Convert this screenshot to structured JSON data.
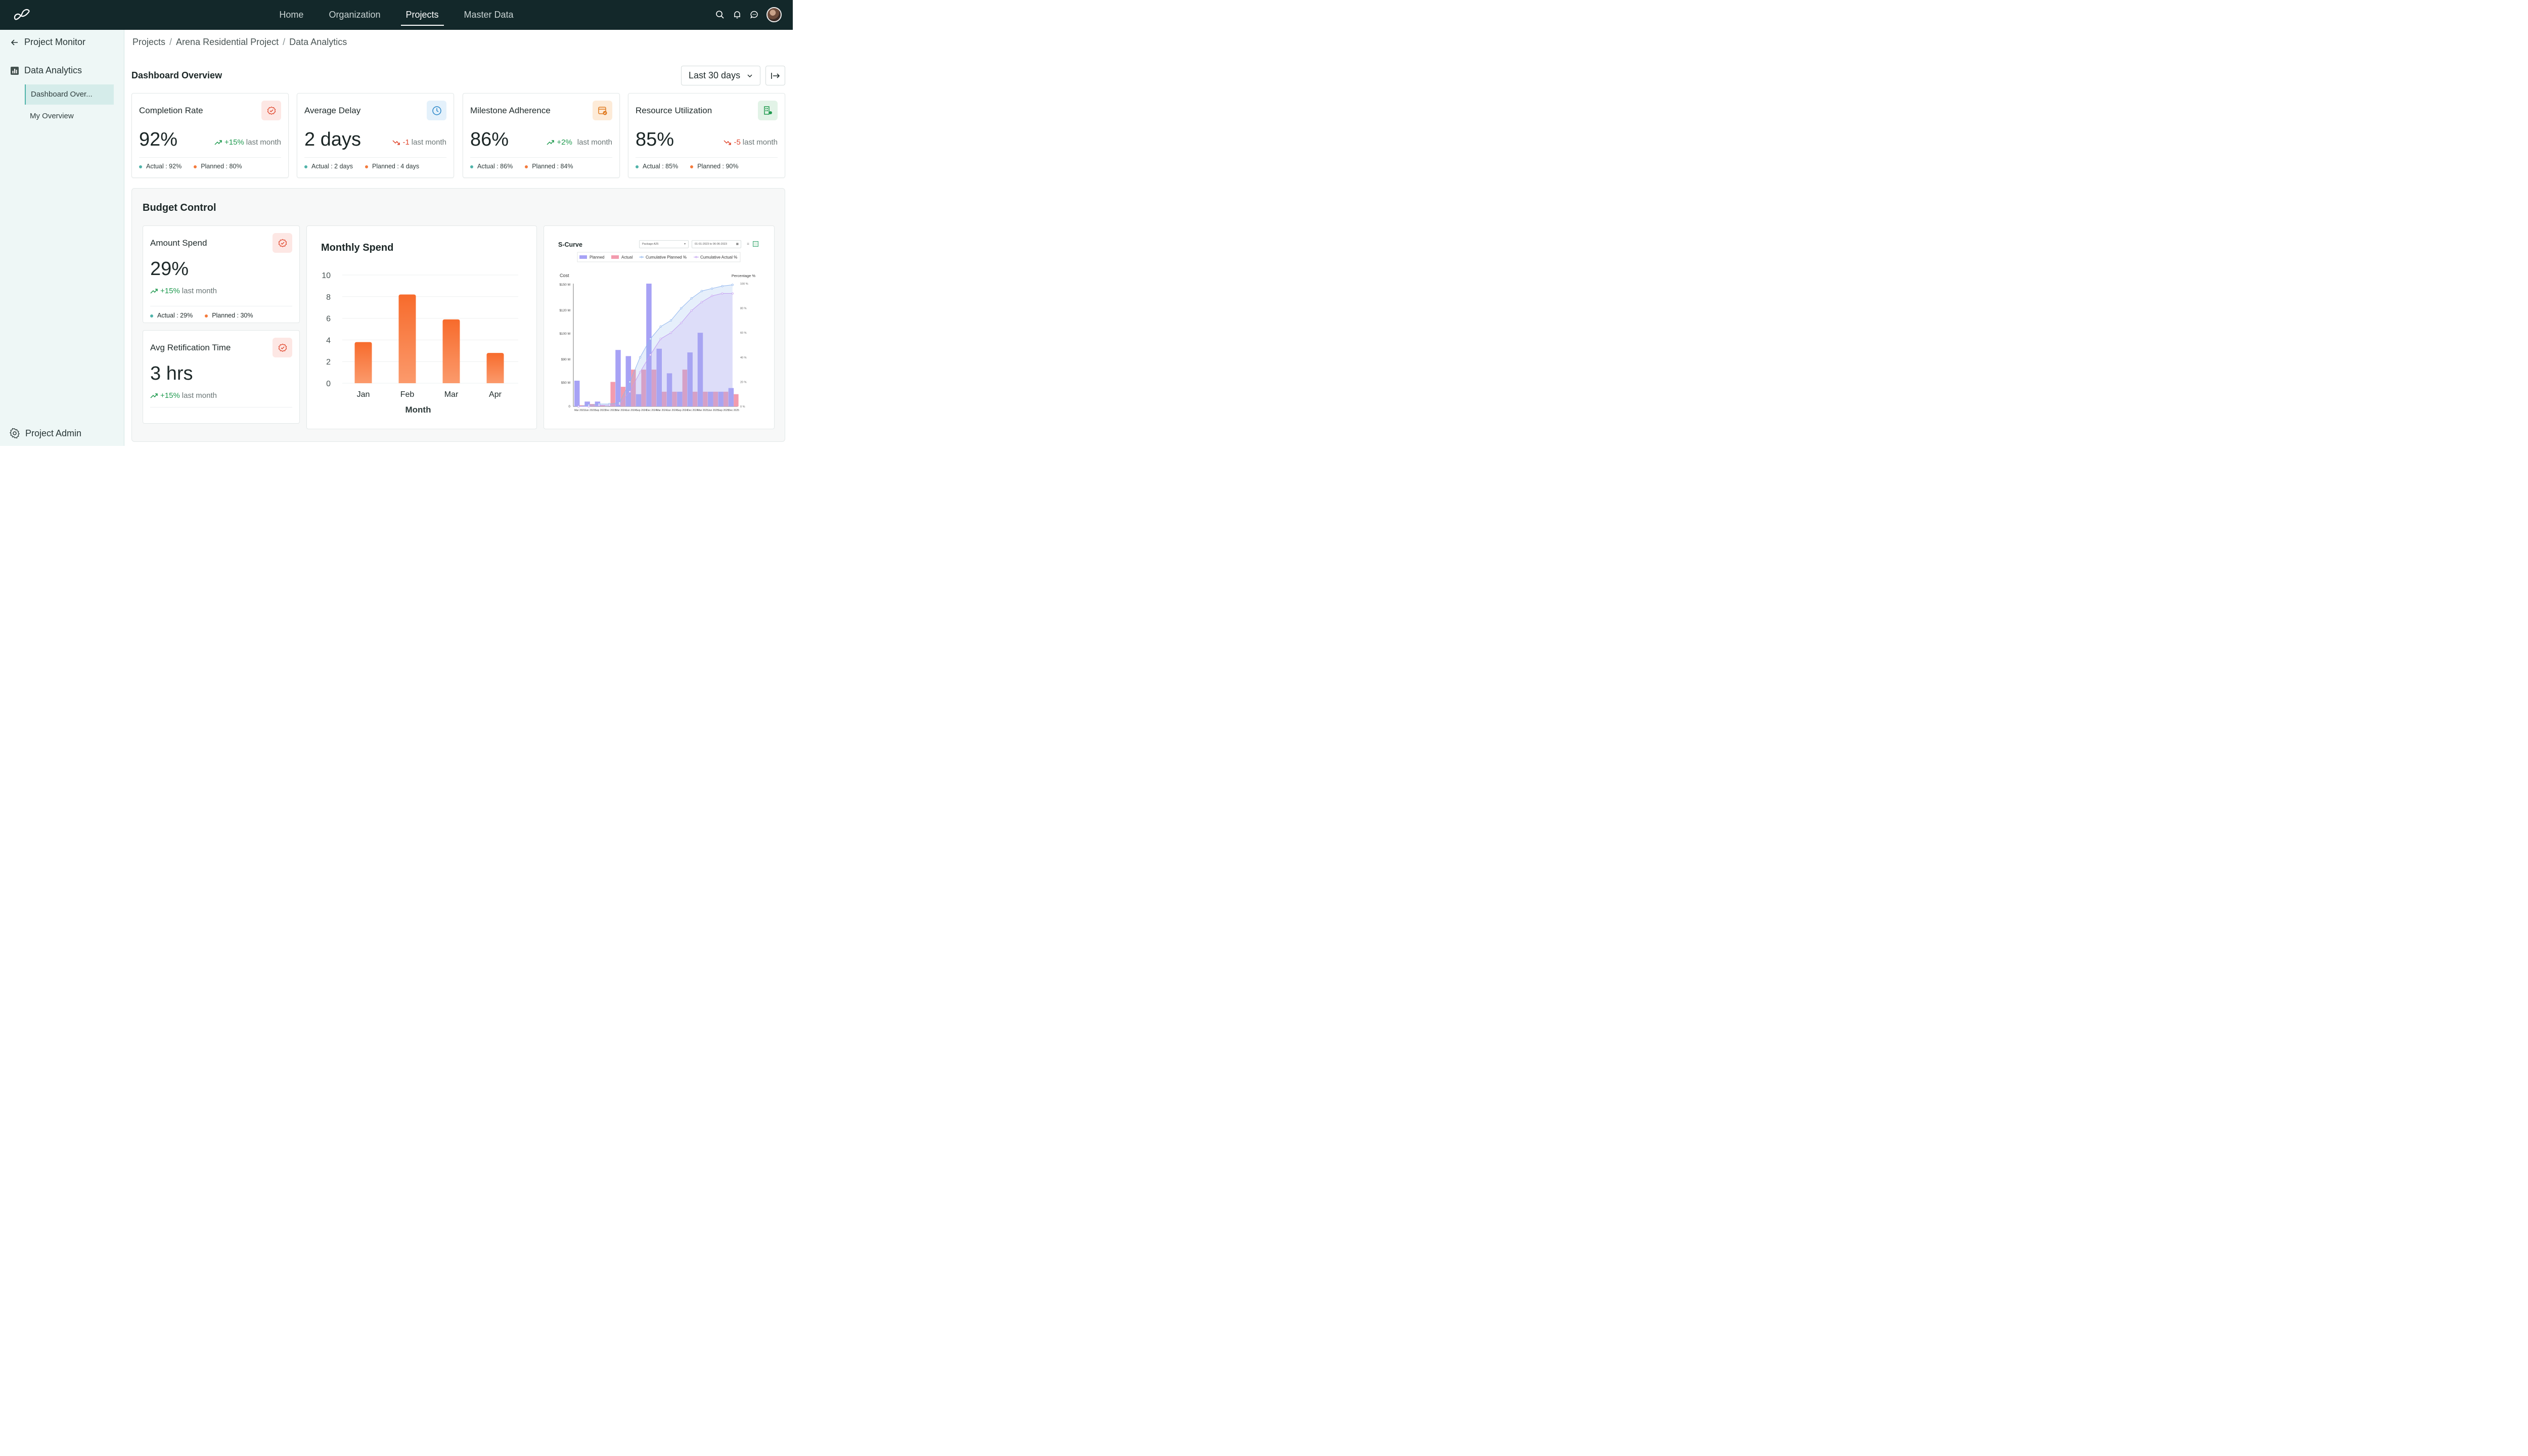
{
  "nav": {
    "items": [
      "Home",
      "Organization",
      "Projects",
      "Master Data"
    ],
    "active": "Projects"
  },
  "sidebar": {
    "back_label": "Project Monitor",
    "section_label": "Data Analytics",
    "items": [
      "Dashboard Over...",
      "My Overview"
    ],
    "admin_label": "Project Admin"
  },
  "breadcrumb": [
    "Projects",
    "Arena Residential Project",
    "Data Analytics"
  ],
  "dashboard": {
    "title": "Dashboard Overview",
    "period": "Last 30 days"
  },
  "kpis": [
    {
      "title": "Completion Rate",
      "value": "92%",
      "change": "+15%",
      "change_suffix": "last month",
      "actual": "Actual : 92%",
      "planned": "Planned : 80%"
    },
    {
      "title": "Average Delay",
      "value": "2 days",
      "change": "-1",
      "change_suffix": "last month",
      "actual": "Actual : 2 days",
      "planned": "Planned : 4 days"
    },
    {
      "title": "Milestone Adherence",
      "value": "86%",
      "change": "+2%",
      "change_suffix": "last month",
      "actual": "Actual : 86%",
      "planned": "Planned : 84%"
    },
    {
      "title": "Resource Utilization",
      "value": "85%",
      "change": "-5",
      "change_suffix": "last month",
      "actual": "Actual : 85%",
      "planned": "Planned : 90%"
    }
  ],
  "budget": {
    "title": "Budget Control",
    "amount": {
      "title": "Amount Spend",
      "value": "29%",
      "change": "+15%",
      "change_suffix": "last month",
      "actual": "Actual : 29%",
      "planned": "Planned : 30%"
    },
    "rectification": {
      "title": "Avg Retification Time",
      "value": "3 hrs",
      "change": "+15%",
      "change_suffix": "last month"
    }
  },
  "colors": {
    "topbar": "#13282a",
    "accent": "#4fb3a9",
    "orange": "#f47a3b",
    "up": "#1f9a4f",
    "down": "#e0452b",
    "planned": "#a7a2f5",
    "actual": "#f29bae"
  },
  "chart_data": [
    {
      "type": "bar",
      "title": "Monthly Spend",
      "categories": [
        "Jan",
        "Feb",
        "Mar",
        "Apr"
      ],
      "values": [
        3.8,
        8.2,
        5.9,
        2.8
      ],
      "xlabel": "Month",
      "ylabel": "",
      "ylim": [
        0,
        10
      ],
      "yticks": [
        0,
        2,
        4,
        6,
        8,
        10
      ],
      "grid": true
    },
    {
      "type": "bar",
      "title": "S-Curve",
      "filter": "Package A25",
      "date_range": "01-01-2023 to 06-06-2023",
      "legend": [
        "Planned",
        "Actual",
        "Cumulative Planned %",
        "Cumulative Actual %"
      ],
      "ylabel": "Cost",
      "y2label": "Percentage %",
      "yticks": [
        "0",
        "$50 M",
        "$90 M",
        "$100 M",
        "$120 M",
        "$150 M"
      ],
      "y2ticks": [
        "0 %",
        "20 %",
        "40 %",
        "60 %",
        "80 %",
        "100 %"
      ],
      "categories": [
        "Mar 2023",
        "Jun 2023",
        "Sep 2023",
        "Dec 2023",
        "Mar 2024",
        "Jun 2024",
        "Sep 2024",
        "Dec 2024",
        "Mar 2024",
        "Jun 2024",
        "Sep 2024",
        "Dec 2024",
        "Mar 2025",
        "Jun 2025",
        "Sep 2025",
        "Dec 2025"
      ],
      "series": [
        {
          "name": "Planned",
          "values": [
            21,
            4,
            4,
            0,
            46,
            41,
            10,
            100,
            47,
            27,
            12,
            44,
            60,
            12,
            12,
            15
          ]
        },
        {
          "name": "Actual",
          "values": [
            1,
            2,
            1,
            20,
            16,
            30,
            30,
            30,
            12,
            12,
            30,
            12,
            12,
            12,
            12,
            10
          ]
        },
        {
          "name": "Cumulative Planned %",
          "values": [
            0,
            1,
            2,
            2,
            3,
            20,
            40,
            55,
            65,
            70,
            80,
            88,
            94,
            96,
            98,
            99
          ]
        },
        {
          "name": "Cumulative Actual %",
          "values": [
            0,
            0,
            1,
            1,
            2,
            12,
            28,
            42,
            55,
            60,
            68,
            78,
            85,
            90,
            92,
            92
          ]
        }
      ]
    }
  ]
}
